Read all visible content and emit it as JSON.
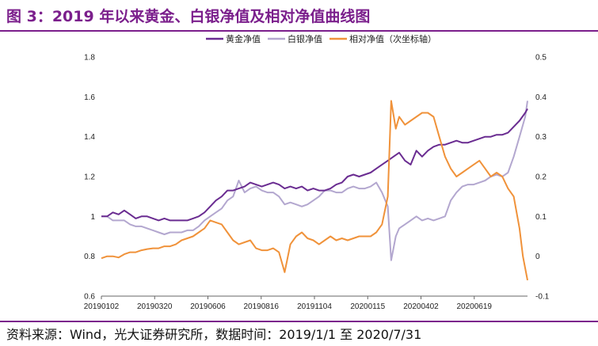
{
  "header": {
    "title": "图 3：2019 年以来黄金、白银净值及相对净值曲线图"
  },
  "footer": {
    "source": "资料来源：Wind，光大证券研究所，数据时间：2019/1/1 至 2020/7/31"
  },
  "colors": {
    "gold": "#6a2c91",
    "silver": "#b3a7cf",
    "relative": "#f0923a",
    "brand": "#7b1f8c"
  },
  "chart_data": {
    "type": "line",
    "title": "",
    "xlabel": "",
    "ylabel": "",
    "ylim": [
      0.6,
      1.8
    ],
    "y2lim": [
      -0.1,
      0.5
    ],
    "y_ticks": [
      "0.6",
      "0.8",
      "1",
      "1.2",
      "1.4",
      "1.6",
      "1.8"
    ],
    "y2_ticks": [
      "-0.1",
      "0",
      "0.1",
      "0.2",
      "0.3",
      "0.4",
      "0.5"
    ],
    "x_ticks": [
      "20190102",
      "20190320",
      "20190606",
      "20190816",
      "20191104",
      "20200115",
      "20200402",
      "20200619"
    ],
    "legend": {
      "placement": "top-center"
    },
    "grid": false,
    "series": [
      {
        "name": "黄金净值",
        "axis": "left",
        "color": "#6a2c91",
        "points": [
          [
            0,
            1.0
          ],
          [
            5,
            1.0
          ],
          [
            10,
            1.02
          ],
          [
            15,
            1.01
          ],
          [
            20,
            1.03
          ],
          [
            25,
            1.01
          ],
          [
            30,
            0.99
          ],
          [
            35,
            1.0
          ],
          [
            40,
            1.0
          ],
          [
            45,
            0.99
          ],
          [
            50,
            0.98
          ],
          [
            55,
            0.99
          ],
          [
            60,
            0.98
          ],
          [
            65,
            0.98
          ],
          [
            70,
            0.98
          ],
          [
            75,
            0.98
          ],
          [
            80,
            0.99
          ],
          [
            85,
            1.0
          ],
          [
            90,
            1.02
          ],
          [
            95,
            1.05
          ],
          [
            100,
            1.08
          ],
          [
            105,
            1.1
          ],
          [
            110,
            1.13
          ],
          [
            115,
            1.13
          ],
          [
            120,
            1.14
          ],
          [
            125,
            1.15
          ],
          [
            130,
            1.17
          ],
          [
            135,
            1.16
          ],
          [
            140,
            1.15
          ],
          [
            145,
            1.16
          ],
          [
            150,
            1.17
          ],
          [
            155,
            1.16
          ],
          [
            160,
            1.14
          ],
          [
            165,
            1.15
          ],
          [
            170,
            1.14
          ],
          [
            175,
            1.15
          ],
          [
            180,
            1.13
          ],
          [
            185,
            1.14
          ],
          [
            190,
            1.13
          ],
          [
            195,
            1.13
          ],
          [
            200,
            1.14
          ],
          [
            205,
            1.16
          ],
          [
            210,
            1.17
          ],
          [
            215,
            1.2
          ],
          [
            220,
            1.21
          ],
          [
            225,
            1.2
          ],
          [
            230,
            1.21
          ],
          [
            235,
            1.22
          ],
          [
            240,
            1.24
          ],
          [
            245,
            1.26
          ],
          [
            250,
            1.28
          ],
          [
            255,
            1.3
          ],
          [
            260,
            1.32
          ],
          [
            265,
            1.28
          ],
          [
            270,
            1.26
          ],
          [
            275,
            1.33
          ],
          [
            280,
            1.3
          ],
          [
            285,
            1.33
          ],
          [
            290,
            1.35
          ],
          [
            295,
            1.36
          ],
          [
            300,
            1.36
          ],
          [
            305,
            1.37
          ],
          [
            310,
            1.38
          ],
          [
            315,
            1.37
          ],
          [
            320,
            1.37
          ],
          [
            325,
            1.38
          ],
          [
            330,
            1.39
          ],
          [
            335,
            1.4
          ],
          [
            340,
            1.4
          ],
          [
            345,
            1.41
          ],
          [
            350,
            1.41
          ],
          [
            355,
            1.42
          ],
          [
            360,
            1.45
          ],
          [
            365,
            1.48
          ],
          [
            370,
            1.52
          ],
          [
            372,
            1.54
          ]
        ]
      },
      {
        "name": "白银净值",
        "axis": "left",
        "color": "#b3a7cf",
        "points": [
          [
            0,
            1.0
          ],
          [
            5,
            1.0
          ],
          [
            10,
            0.98
          ],
          [
            15,
            0.98
          ],
          [
            20,
            0.98
          ],
          [
            25,
            0.96
          ],
          [
            30,
            0.95
          ],
          [
            35,
            0.95
          ],
          [
            40,
            0.94
          ],
          [
            45,
            0.93
          ],
          [
            50,
            0.92
          ],
          [
            55,
            0.91
          ],
          [
            60,
            0.92
          ],
          [
            65,
            0.92
          ],
          [
            70,
            0.92
          ],
          [
            75,
            0.93
          ],
          [
            80,
            0.93
          ],
          [
            85,
            0.95
          ],
          [
            90,
            0.98
          ],
          [
            95,
            1.0
          ],
          [
            100,
            1.02
          ],
          [
            105,
            1.04
          ],
          [
            110,
            1.08
          ],
          [
            115,
            1.1
          ],
          [
            120,
            1.18
          ],
          [
            125,
            1.12
          ],
          [
            130,
            1.14
          ],
          [
            135,
            1.15
          ],
          [
            140,
            1.13
          ],
          [
            145,
            1.12
          ],
          [
            150,
            1.12
          ],
          [
            155,
            1.1
          ],
          [
            160,
            1.06
          ],
          [
            165,
            1.07
          ],
          [
            170,
            1.06
          ],
          [
            175,
            1.05
          ],
          [
            180,
            1.06
          ],
          [
            185,
            1.08
          ],
          [
            190,
            1.1
          ],
          [
            195,
            1.13
          ],
          [
            200,
            1.13
          ],
          [
            205,
            1.12
          ],
          [
            210,
            1.12
          ],
          [
            215,
            1.14
          ],
          [
            220,
            1.15
          ],
          [
            225,
            1.14
          ],
          [
            230,
            1.14
          ],
          [
            235,
            1.15
          ],
          [
            240,
            1.17
          ],
          [
            245,
            1.12
          ],
          [
            250,
            1.05
          ],
          [
            253,
            0.78
          ],
          [
            257,
            0.9
          ],
          [
            260,
            0.94
          ],
          [
            265,
            0.96
          ],
          [
            270,
            0.98
          ],
          [
            275,
            1.0
          ],
          [
            280,
            0.98
          ],
          [
            285,
            0.99
          ],
          [
            290,
            0.98
          ],
          [
            295,
            0.99
          ],
          [
            300,
            1.0
          ],
          [
            305,
            1.08
          ],
          [
            310,
            1.12
          ],
          [
            315,
            1.15
          ],
          [
            320,
            1.16
          ],
          [
            325,
            1.16
          ],
          [
            330,
            1.17
          ],
          [
            335,
            1.18
          ],
          [
            340,
            1.2
          ],
          [
            345,
            1.21
          ],
          [
            350,
            1.2
          ],
          [
            355,
            1.22
          ],
          [
            360,
            1.3
          ],
          [
            365,
            1.4
          ],
          [
            370,
            1.5
          ],
          [
            372,
            1.58
          ]
        ]
      },
      {
        "name": "相对净值（次坐标轴）",
        "axis": "right",
        "color": "#f0923a",
        "points": [
          [
            0,
            -0.005
          ],
          [
            5,
            0.0
          ],
          [
            10,
            0.0
          ],
          [
            15,
            -0.003
          ],
          [
            20,
            0.005
          ],
          [
            25,
            0.01
          ],
          [
            30,
            0.01
          ],
          [
            35,
            0.015
          ],
          [
            40,
            0.018
          ],
          [
            45,
            0.02
          ],
          [
            50,
            0.02
          ],
          [
            55,
            0.025
          ],
          [
            60,
            0.025
          ],
          [
            65,
            0.03
          ],
          [
            70,
            0.04
          ],
          [
            75,
            0.045
          ],
          [
            80,
            0.05
          ],
          [
            85,
            0.06
          ],
          [
            90,
            0.07
          ],
          [
            95,
            0.09
          ],
          [
            100,
            0.085
          ],
          [
            105,
            0.08
          ],
          [
            110,
            0.06
          ],
          [
            115,
            0.04
          ],
          [
            120,
            0.03
          ],
          [
            125,
            0.035
          ],
          [
            130,
            0.04
          ],
          [
            135,
            0.02
          ],
          [
            140,
            0.015
          ],
          [
            145,
            0.015
          ],
          [
            150,
            0.02
          ],
          [
            155,
            0.01
          ],
          [
            160,
            -0.04
          ],
          [
            165,
            0.03
          ],
          [
            170,
            0.05
          ],
          [
            175,
            0.06
          ],
          [
            180,
            0.045
          ],
          [
            185,
            0.04
          ],
          [
            190,
            0.03
          ],
          [
            195,
            0.04
          ],
          [
            200,
            0.05
          ],
          [
            205,
            0.04
          ],
          [
            210,
            0.045
          ],
          [
            215,
            0.04
          ],
          [
            220,
            0.045
          ],
          [
            225,
            0.05
          ],
          [
            230,
            0.05
          ],
          [
            235,
            0.05
          ],
          [
            240,
            0.06
          ],
          [
            245,
            0.08
          ],
          [
            250,
            0.15
          ],
          [
            253,
            0.39
          ],
          [
            257,
            0.32
          ],
          [
            260,
            0.35
          ],
          [
            265,
            0.33
          ],
          [
            270,
            0.34
          ],
          [
            275,
            0.35
          ],
          [
            280,
            0.36
          ],
          [
            285,
            0.36
          ],
          [
            290,
            0.35
          ],
          [
            295,
            0.3
          ],
          [
            300,
            0.25
          ],
          [
            305,
            0.22
          ],
          [
            310,
            0.2
          ],
          [
            315,
            0.21
          ],
          [
            320,
            0.22
          ],
          [
            325,
            0.23
          ],
          [
            330,
            0.24
          ],
          [
            335,
            0.22
          ],
          [
            340,
            0.2
          ],
          [
            345,
            0.21
          ],
          [
            350,
            0.2
          ],
          [
            355,
            0.17
          ],
          [
            360,
            0.15
          ],
          [
            365,
            0.07
          ],
          [
            368,
            0.0
          ],
          [
            372,
            -0.06
          ]
        ]
      }
    ]
  }
}
